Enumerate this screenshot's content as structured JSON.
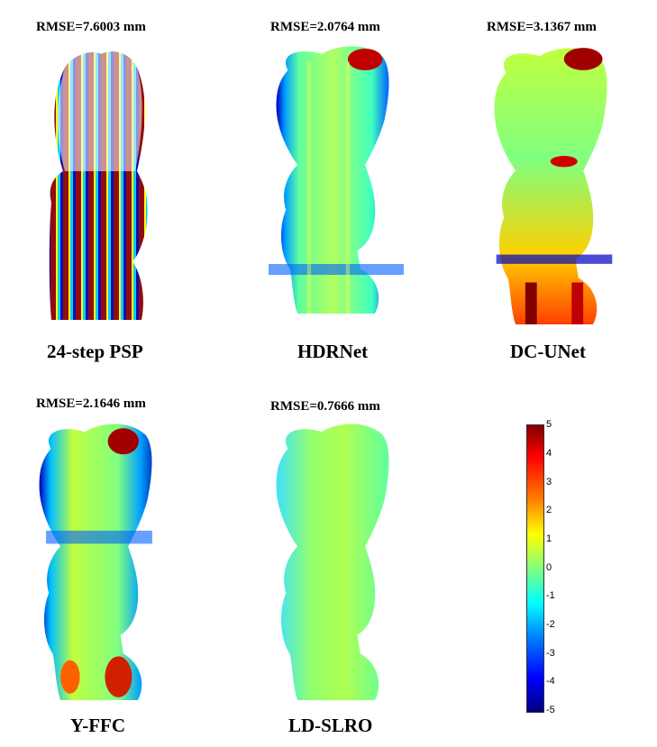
{
  "panels": [
    {
      "rmse": "RMSE=7.6003 mm",
      "method": "24-step PSP"
    },
    {
      "rmse": "RMSE=2.0764 mm",
      "method": "HDRNet"
    },
    {
      "rmse": "RMSE=3.1367 mm",
      "method": "DC-UNet"
    },
    {
      "rmse": "RMSE=2.1646 mm",
      "method": "Y-FFC"
    },
    {
      "rmse": "RMSE=0.7666 mm",
      "method": "LD-SLRO"
    }
  ],
  "colorbar": {
    "ticks": [
      "5",
      "4",
      "3",
      "2",
      "1",
      "0",
      "-1",
      "-2",
      "-3",
      "-4",
      "-5"
    ],
    "colormap": [
      "#000080",
      "#0000ff",
      "#0080ff",
      "#00ffff",
      "#80ff80",
      "#ffff00",
      "#ff8000",
      "#ff0000",
      "#800000"
    ]
  }
}
